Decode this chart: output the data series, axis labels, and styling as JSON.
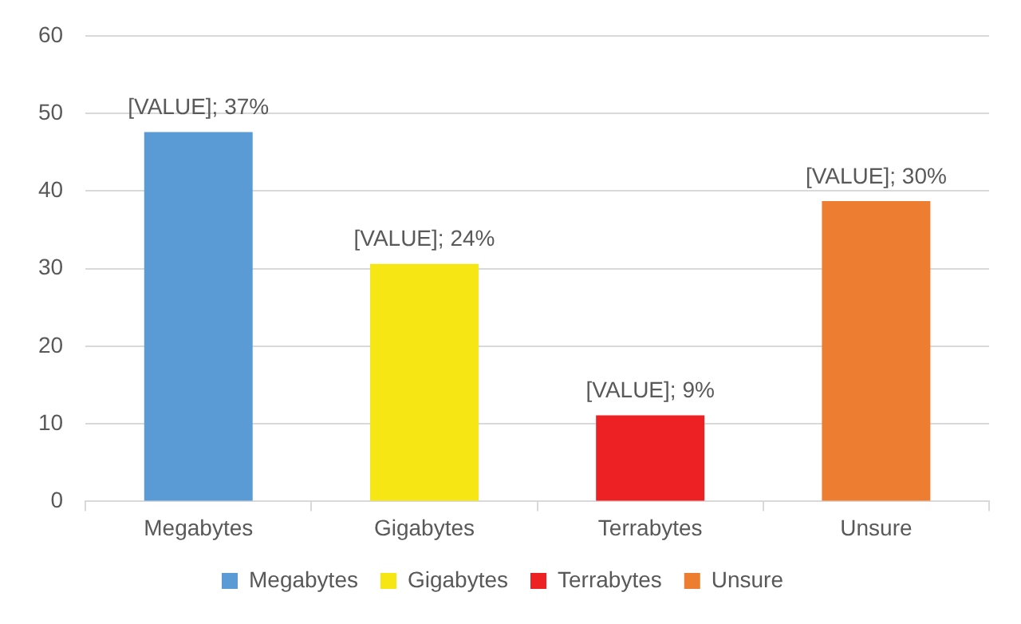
{
  "chart_data": {
    "type": "bar",
    "categories": [
      "Megabytes",
      "Gigabytes",
      "Terrabytes",
      "Unsure"
    ],
    "series": [
      {
        "name": "Megabytes",
        "color": "#5b9bd5",
        "values": [
          47.6,
          null,
          null,
          null
        ]
      },
      {
        "name": "Gigabytes",
        "color": "#f5e614",
        "values": [
          null,
          30.6,
          null,
          null
        ]
      },
      {
        "name": "Terrabytes",
        "color": "#ed2024",
        "values": [
          null,
          null,
          11.1,
          null
        ]
      },
      {
        "name": "Unsure",
        "color": "#ed7d31",
        "values": [
          null,
          null,
          null,
          38.7
        ]
      }
    ],
    "annotations": [
      {
        "text": "[VALUE]; 37%",
        "x": "Megabytes",
        "y": 47.6
      },
      {
        "text": "[VALUE]; 24%",
        "x": "Gigabytes",
        "y": 30.6
      },
      {
        "text": "[VALUE]; 9%",
        "x": "Terrabytes",
        "y": 11.1
      },
      {
        "text": "[VALUE]; 30%",
        "x": "Unsure",
        "y": 38.7
      }
    ],
    "ylim": [
      0,
      60
    ],
    "yticks": [
      0,
      10,
      20,
      30,
      40,
      50,
      60
    ],
    "grid": "y",
    "legend": "bottom"
  }
}
